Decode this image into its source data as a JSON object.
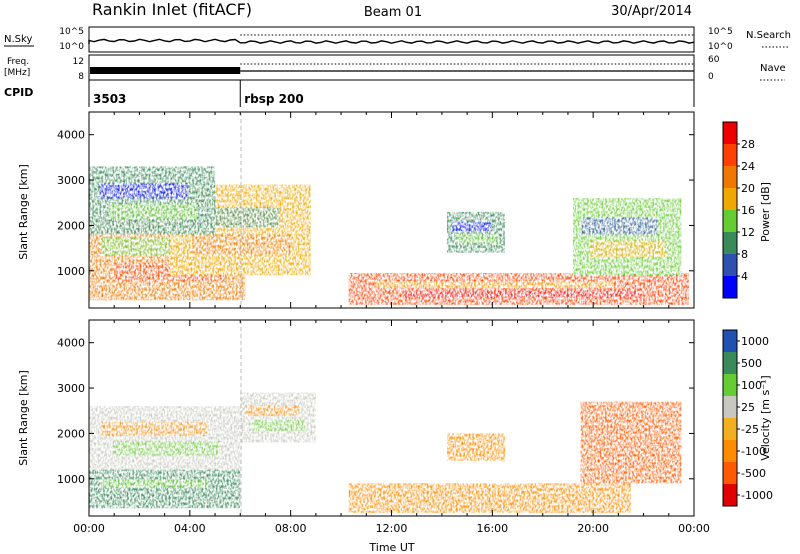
{
  "header": {
    "station": "Rankin Inlet (fitACF)",
    "beam": "Beam 01",
    "date": "30/Apr/2014"
  },
  "top_panels": {
    "nsky": {
      "label": "N.Sky",
      "right_label": "N.Search",
      "left_ticks": [
        "10^5",
        "10^0"
      ],
      "right_ticks": [
        "10^5",
        "10^0"
      ]
    },
    "freq": {
      "label_line1": "Freq.",
      "label_line2": "[MHz]",
      "right_label": "Nave",
      "left_ticks": [
        "12",
        "8"
      ],
      "right_ticks": [
        "60",
        "0"
      ]
    },
    "cpid": {
      "label": "CPID",
      "entries": [
        {
          "text": "3503",
          "x_hours": 0.0
        },
        {
          "text": "rbsp 200",
          "x_hours": 6.0
        }
      ]
    }
  },
  "colors": {
    "power_bar": [
      "#0000ff",
      "#3050b0",
      "#3a8a5a",
      "#66cc33",
      "#f0a800",
      "#f07800",
      "#ff4000",
      "#ee0000"
    ],
    "velocity_bar": [
      "#e00000",
      "#ff5a00",
      "#ff8c00",
      "#f0b020",
      "#c8c8c0",
      "#66cc33",
      "#3a8a5a",
      "#2050b0"
    ]
  },
  "chart_data": [
    {
      "type": "heatmap",
      "name": "power",
      "xlabel": "",
      "ylabel": "Slant Range [km]",
      "xlim": [
        0,
        24
      ],
      "ylim": [
        180,
        4500
      ],
      "yticks": [
        "1000",
        "2000",
        "3000",
        "4000"
      ],
      "colorbar_label": "Power [dB]",
      "colorbar_ticks": [
        "4",
        "8",
        "12",
        "16",
        "20",
        "24",
        "28"
      ],
      "regions": [
        {
          "x": [
            0.0,
            6.2
          ],
          "y": [
            350,
            2200
          ],
          "value": 22
        },
        {
          "x": [
            3.2,
            8.8
          ],
          "y": [
            900,
            2900
          ],
          "value": 18
        },
        {
          "x": [
            0.0,
            5.0
          ],
          "y": [
            1800,
            3300
          ],
          "value": 8
        },
        {
          "x": [
            10.3,
            23.8
          ],
          "y": [
            250,
            950
          ],
          "value": 26
        },
        {
          "x": [
            14.2,
            16.5
          ],
          "y": [
            1400,
            2300
          ],
          "value": 10
        },
        {
          "x": [
            19.2,
            23.5
          ],
          "y": [
            900,
            2600
          ],
          "value": 12
        }
      ]
    },
    {
      "type": "heatmap",
      "name": "velocity",
      "xlabel": "Time UT",
      "ylabel": "Slant Range [km]",
      "xlim": [
        0,
        24
      ],
      "ylim": [
        180,
        4500
      ],
      "xticks": [
        "00:00",
        "04:00",
        "08:00",
        "12:00",
        "16:00",
        "20:00",
        "00:00"
      ],
      "yticks": [
        "1000",
        "2000",
        "3000",
        "4000"
      ],
      "colorbar_label": "Velocity [m s⁻¹]",
      "colorbar_ticks": [
        "1000",
        "500",
        "100",
        "25",
        "-25",
        "-100",
        "-500",
        "-1000"
      ],
      "regions": [
        {
          "x": [
            0.0,
            6.0
          ],
          "y": [
            1200,
            2600
          ],
          "value": 0
        },
        {
          "x": [
            0.0,
            6.0
          ],
          "y": [
            350,
            1200
          ],
          "value": 200
        },
        {
          "x": [
            6.0,
            9.0
          ],
          "y": [
            1800,
            2900
          ],
          "value": 0
        },
        {
          "x": [
            10.3,
            21.5
          ],
          "y": [
            250,
            900
          ],
          "value": -150
        },
        {
          "x": [
            14.2,
            16.5
          ],
          "y": [
            1400,
            2000
          ],
          "value": -150
        },
        {
          "x": [
            19.5,
            23.5
          ],
          "y": [
            900,
            2700
          ],
          "value": -600
        }
      ]
    }
  ]
}
